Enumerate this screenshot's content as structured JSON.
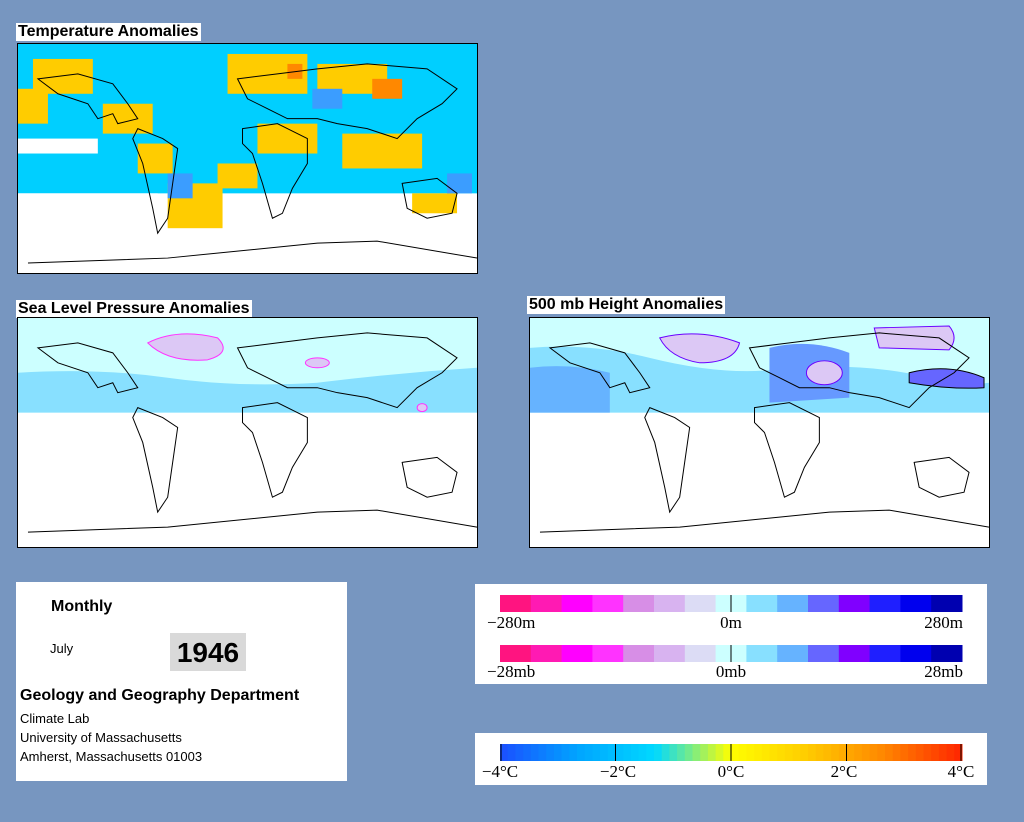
{
  "panels": {
    "temperature": {
      "title": "Temperature Anomalies"
    },
    "slp": {
      "title": "Sea Level Pressure Anomalies"
    },
    "height500": {
      "title": "500 mb Height Anomalies"
    }
  },
  "info": {
    "period": "Monthly",
    "month": "July",
    "year": "1946",
    "department": "Geology and Geography Department",
    "lab": "Climate Lab",
    "university": "University of Massachusetts",
    "address": "Amherst, Massachusetts 01003"
  },
  "legends": {
    "height": {
      "labels": [
        "−280m",
        "0m",
        "280m"
      ]
    },
    "pressure": {
      "labels": [
        "−28mb",
        "0mb",
        "28mb"
      ]
    },
    "temperature": {
      "labels": [
        "−4°C",
        "−2°C",
        "0°C",
        "2°C",
        "4°C"
      ]
    }
  },
  "colors": {
    "background": "#7796c0",
    "anomaly_scale": [
      "#ff1480",
      "#ff1ab3",
      "#ff00ff",
      "#ff33ff",
      "#d78ee6",
      "#d8b3f0",
      "#dcdcf5",
      "#ccffff",
      "#88e0ff",
      "#66b3ff",
      "#6666ff",
      "#8000ff",
      "#1f1fff",
      "#0000ee",
      "#0000b0"
    ],
    "temp_scale": [
      "#1a53ff",
      "#00a6ff",
      "#00d9ff",
      "#ffff00",
      "#ffcc00",
      "#ff8800",
      "#ff2a00"
    ]
  }
}
